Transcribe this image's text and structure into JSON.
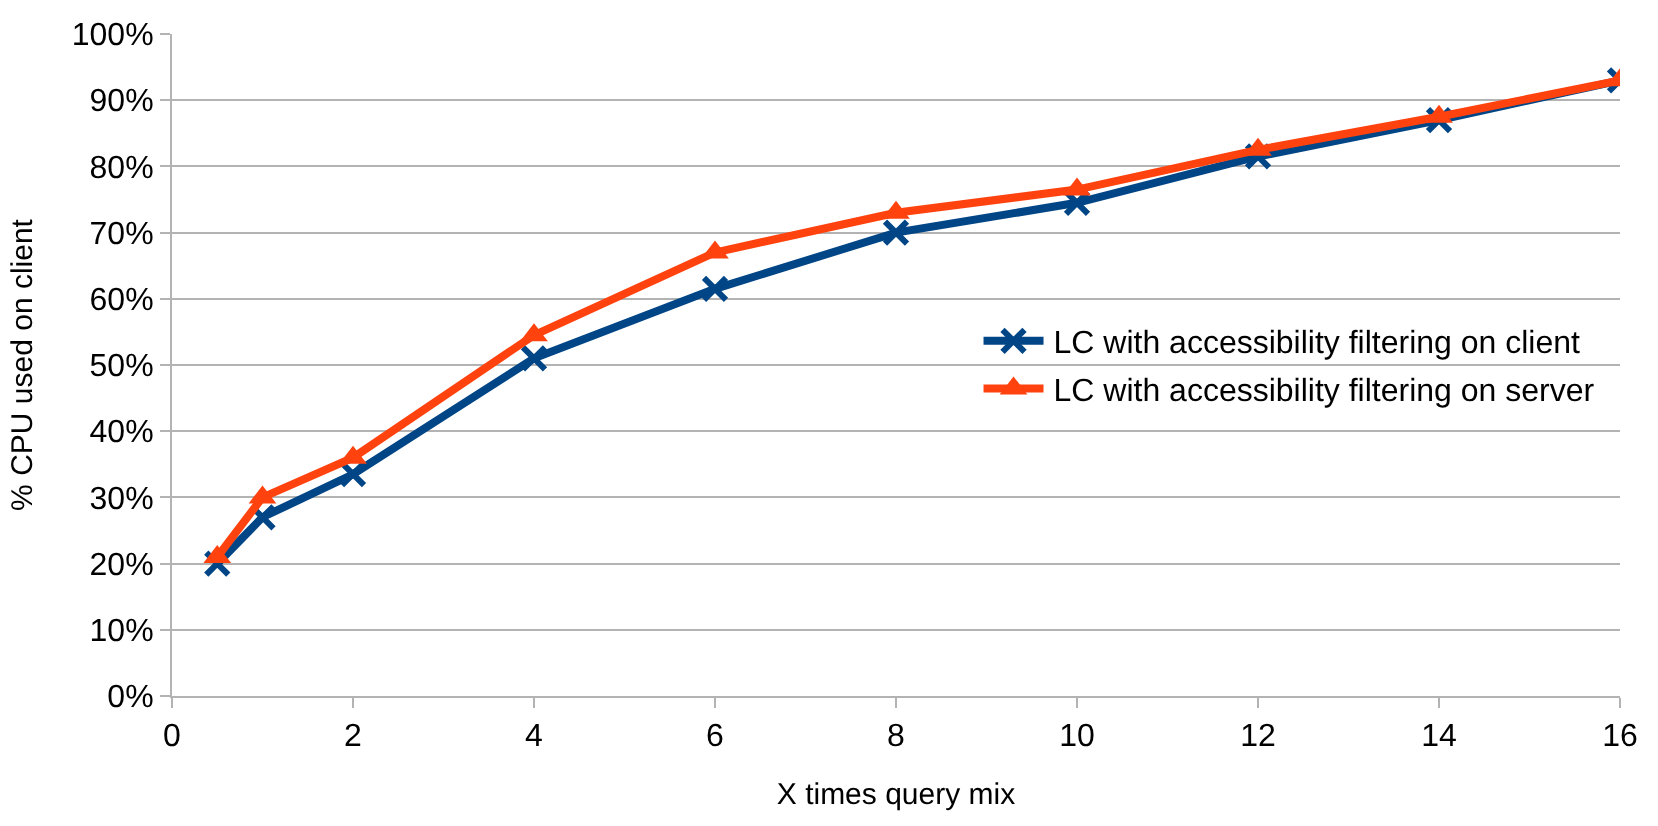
{
  "chart_data": {
    "type": "line",
    "xlabel": "X times query mix",
    "ylabel": "% CPU used on client",
    "x": [
      0.5,
      1,
      2,
      4,
      6,
      8,
      10,
      12,
      14,
      16
    ],
    "series": [
      {
        "name": "LC with accessibility filtering on client",
        "color": "#004586",
        "marker": "cross",
        "values": [
          20,
          27,
          33.5,
          51,
          61.5,
          70,
          74.5,
          81.5,
          87,
          93
        ]
      },
      {
        "name": "LC with accessibility filtering on server",
        "color": "#ff420e",
        "marker": "triangle",
        "values": [
          21,
          30,
          36,
          54.5,
          67,
          73,
          76.5,
          82.5,
          87.5,
          93
        ]
      }
    ],
    "xlim": [
      0,
      16
    ],
    "xticks": [
      0,
      2,
      4,
      6,
      8,
      10,
      12,
      14,
      16
    ],
    "ylim": [
      0,
      100
    ],
    "yticks": [
      {
        "value": 0,
        "label": "0%"
      },
      {
        "value": 10,
        "label": "10%"
      },
      {
        "value": 20,
        "label": "20%"
      },
      {
        "value": 30,
        "label": "30%"
      },
      {
        "value": 40,
        "label": "40%"
      },
      {
        "value": 50,
        "label": "50%"
      },
      {
        "value": 60,
        "label": "60%"
      },
      {
        "value": 70,
        "label": "70%"
      },
      {
        "value": 80,
        "label": "80%"
      },
      {
        "value": 90,
        "label": "90%"
      },
      {
        "value": 100,
        "label": "100%"
      }
    ],
    "grid": "y",
    "legend": "right",
    "line_style": "solid"
  }
}
